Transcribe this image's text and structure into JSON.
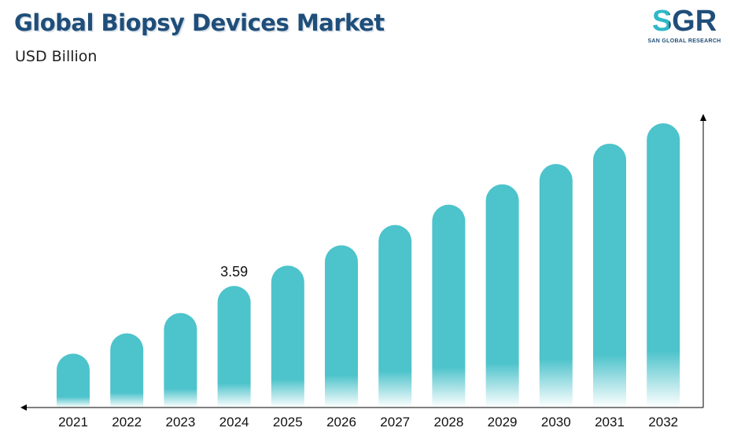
{
  "header": {
    "title": "Global Biopsy Devices Market",
    "subtitle": "USD Billion"
  },
  "logo": {
    "text": "SGR",
    "tagline": "SAN GLOBAL RESEARCH"
  },
  "colors": {
    "bar": "#4dc3cb",
    "bar_fade": "#ffffff",
    "title": "#1f4e79",
    "axis": "#000000"
  },
  "chart_data": {
    "type": "bar",
    "title": "Global Biopsy Devices Market",
    "subtitle": "USD Billion",
    "categories": [
      "2021",
      "2022",
      "2023",
      "2024",
      "2025",
      "2026",
      "2027",
      "2028",
      "2029",
      "2030",
      "2031",
      "2032"
    ],
    "values": [
      1.59,
      2.19,
      2.79,
      3.59,
      4.19,
      4.79,
      5.39,
      5.99,
      6.59,
      7.19,
      7.79,
      8.39
    ],
    "data_labels": [
      {
        "category": "2024",
        "text": "3.59"
      }
    ],
    "ylim": [
      0,
      8.6
    ],
    "grid": false,
    "legend": "none"
  }
}
